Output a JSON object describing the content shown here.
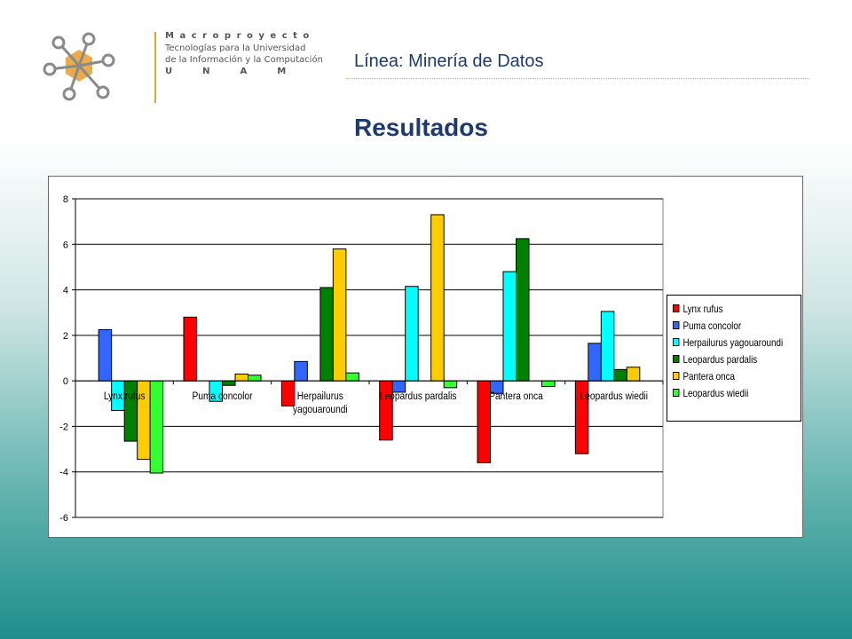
{
  "header": {
    "logo_lines": [
      "Macroproyecto",
      "Tecnologías para la Universidad",
      "de la Información y la Computación",
      "UNAM"
    ],
    "linea": "Línea: Minería de Datos",
    "title": "Resultados"
  },
  "colors": {
    "title": "#1e3a6e",
    "logo_hex": "#e8a23a",
    "logo_nodes": "#8a8a8a"
  },
  "chart_data": {
    "type": "bar",
    "title": "",
    "xlabel": "",
    "ylabel": "",
    "ylim": [
      -6,
      8
    ],
    "yticks": [
      -6,
      -4,
      -2,
      0,
      2,
      4,
      6,
      8
    ],
    "grid": true,
    "legend_position": "right",
    "categories": [
      "Lynx rufus",
      "Puma concolor",
      "Herpailurus yagouaroundi",
      "Leopardus pardalis",
      "Pantera onca",
      "Leopardus wiedii"
    ],
    "series": [
      {
        "name": "Lynx rufus",
        "color": "#ff0000",
        "values": [
          0,
          2.8,
          -1.1,
          -2.6,
          -3.6,
          -3.2
        ]
      },
      {
        "name": "Puma concolor",
        "color": "#3366ff",
        "values": [
          2.25,
          0,
          0.85,
          -0.5,
          -0.55,
          1.65
        ]
      },
      {
        "name": "Herpailurus yagouaroundi",
        "color": "#00ffff",
        "values": [
          -1.3,
          -0.9,
          0,
          4.15,
          4.8,
          3.05
        ]
      },
      {
        "name": "Leopardus pardalis",
        "color": "#008000",
        "values": [
          -2.65,
          -0.2,
          4.1,
          0,
          6.25,
          0.5
        ]
      },
      {
        "name": "Pantera onca",
        "color": "#ffcc00",
        "values": [
          -3.45,
          0.3,
          5.8,
          7.3,
          0,
          0.6
        ]
      },
      {
        "name": "Leopardus wiedii",
        "color": "#33ff33",
        "values": [
          -4.05,
          0.25,
          0.35,
          -0.3,
          -0.25,
          0
        ]
      }
    ]
  }
}
